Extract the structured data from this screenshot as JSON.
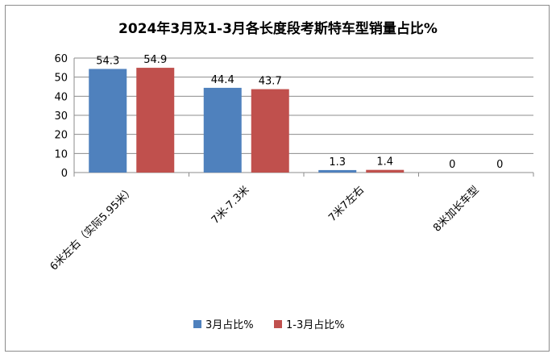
{
  "chart_data": {
    "type": "bar",
    "title": "2024年3月及1-3月各长度段考斯特车型销量占比%",
    "categories": [
      "6米左右（实际5.95米）",
      "7米-7.3米",
      "7米7左右",
      "8米加长车型"
    ],
    "series": [
      {
        "name": "3月占比%",
        "values": [
          54.3,
          44.4,
          1.3,
          0
        ],
        "labels": [
          "54.3",
          "44.4",
          "1.3",
          "0"
        ],
        "color": "#4f81bd"
      },
      {
        "name": "1-3月占比%",
        "values": [
          54.9,
          43.7,
          1.4,
          0
        ],
        "labels": [
          "54.9",
          "43.7",
          "1.4",
          "0"
        ],
        "color": "#c0504d"
      }
    ],
    "yticks": [
      "0",
      "10",
      "20",
      "30",
      "40",
      "50",
      "60"
    ],
    "ylim": [
      0,
      60
    ],
    "grid": true,
    "legend_position": "bottom"
  }
}
